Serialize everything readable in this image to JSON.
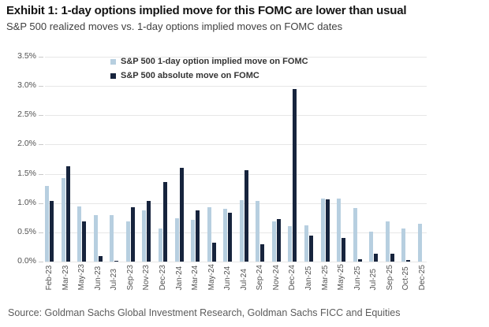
{
  "header": {
    "title": "Exhibit 1: 1-day options implied move for this FOMC are lower than usual",
    "subtitle": "S&P 500 realized moves vs. 1-day options implied moves on FOMC dates"
  },
  "footer": {
    "source": "Source: Goldman Sachs Global Investment Research, Goldman Sachs FICC and Equities"
  },
  "chart_data": {
    "type": "bar",
    "title": "Exhibit 1: 1-day options implied move for this FOMC are lower than usual",
    "subtitle": "S&P 500 realized moves vs. 1-day options implied moves on FOMC dates",
    "categories": [
      "Feb-23",
      "Mar-23",
      "May-23",
      "Jun-23",
      "Jul-23",
      "Sep-23",
      "Nov-23",
      "Dec-23",
      "Jan-24",
      "Mar-24",
      "May-24",
      "Jun-24",
      "Jul-24",
      "Sep-24",
      "Nov-24",
      "Dec-24",
      "Jan-25",
      "Mar-25",
      "May-25",
      "Jun-25",
      "Jul-25",
      "Sep-25",
      "Oct-25",
      "Dec-25"
    ],
    "series": [
      {
        "key": "implied",
        "name": "S&P 500 1-day option implied move on FOMC",
        "color": "#b7cfe0",
        "values": [
          1.29,
          1.43,
          0.94,
          0.79,
          0.79,
          0.68,
          0.87,
          0.56,
          0.74,
          0.72,
          0.93,
          0.9,
          1.05,
          1.04,
          0.68,
          0.6,
          0.62,
          1.08,
          1.08,
          0.91,
          0.51,
          0.68,
          0.56,
          0.65
        ]
      },
      {
        "key": "absolute",
        "name": "S&P 500 absolute move on FOMC",
        "color": "#17243d",
        "values": [
          1.03,
          1.63,
          0.68,
          0.09,
          0.02,
          0.93,
          1.04,
          1.36,
          1.6,
          0.87,
          0.32,
          0.84,
          1.56,
          0.29,
          0.73,
          2.95,
          0.45,
          1.07,
          0.41,
          0.04,
          0.13,
          0.13,
          0.03,
          null
        ]
      }
    ],
    "ylim": [
      0,
      3.5
    ],
    "ytick_values": [
      3.5,
      3.0,
      2.5,
      2.0,
      1.5,
      1.0,
      0.5,
      0.0
    ],
    "ytick_labels": [
      "3.5%",
      "3.0%",
      "2.5%",
      "2.0%",
      "1.5%",
      "1.0%",
      "0.5%",
      "0.0%"
    ],
    "xlabel": "",
    "ylabel": "",
    "grid": "horizontal",
    "legend_position": "top-inside"
  }
}
